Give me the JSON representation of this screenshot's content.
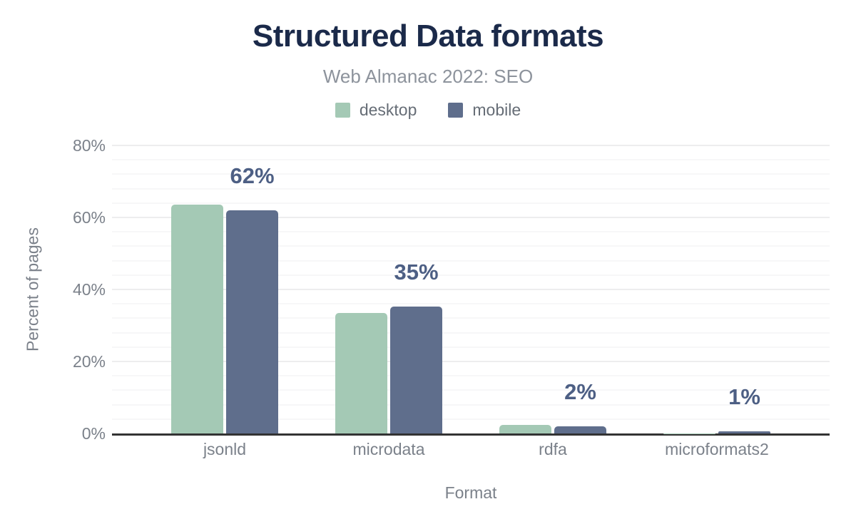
{
  "chart_data": {
    "type": "bar",
    "title": "Structured Data formats",
    "subtitle": "Web Almanac 2022: SEO",
    "xlabel": "Format",
    "ylabel": "Percent of pages",
    "categories": [
      "jsonld",
      "microdata",
      "rdfa",
      "microformats2"
    ],
    "series": [
      {
        "name": "desktop",
        "color": "#a4c9b5",
        "values": [
          63.5,
          33.4,
          2.4,
          0.1
        ]
      },
      {
        "name": "mobile",
        "color": "#5f6e8c",
        "values": [
          62,
          35.3,
          2,
          0.6
        ]
      }
    ],
    "bar_labels": [
      "62%",
      "35%",
      "2%",
      "1%"
    ],
    "y_ticks": [
      "0%",
      "20%",
      "40%",
      "60%",
      "80%"
    ],
    "ylim": [
      0,
      80
    ],
    "grid": "horizontal, minor every 4%, major every 20%",
    "legend_position": "top",
    "colors": {
      "title": "#1b2a4a",
      "subtitle": "#8d939c",
      "legend_text": "#666d76",
      "axis_text": "#7b818a",
      "value_label": "#4d5f84",
      "axis_line": "#333333",
      "grid_major": "#ededee",
      "grid_minor": "#f7f7f8"
    }
  }
}
